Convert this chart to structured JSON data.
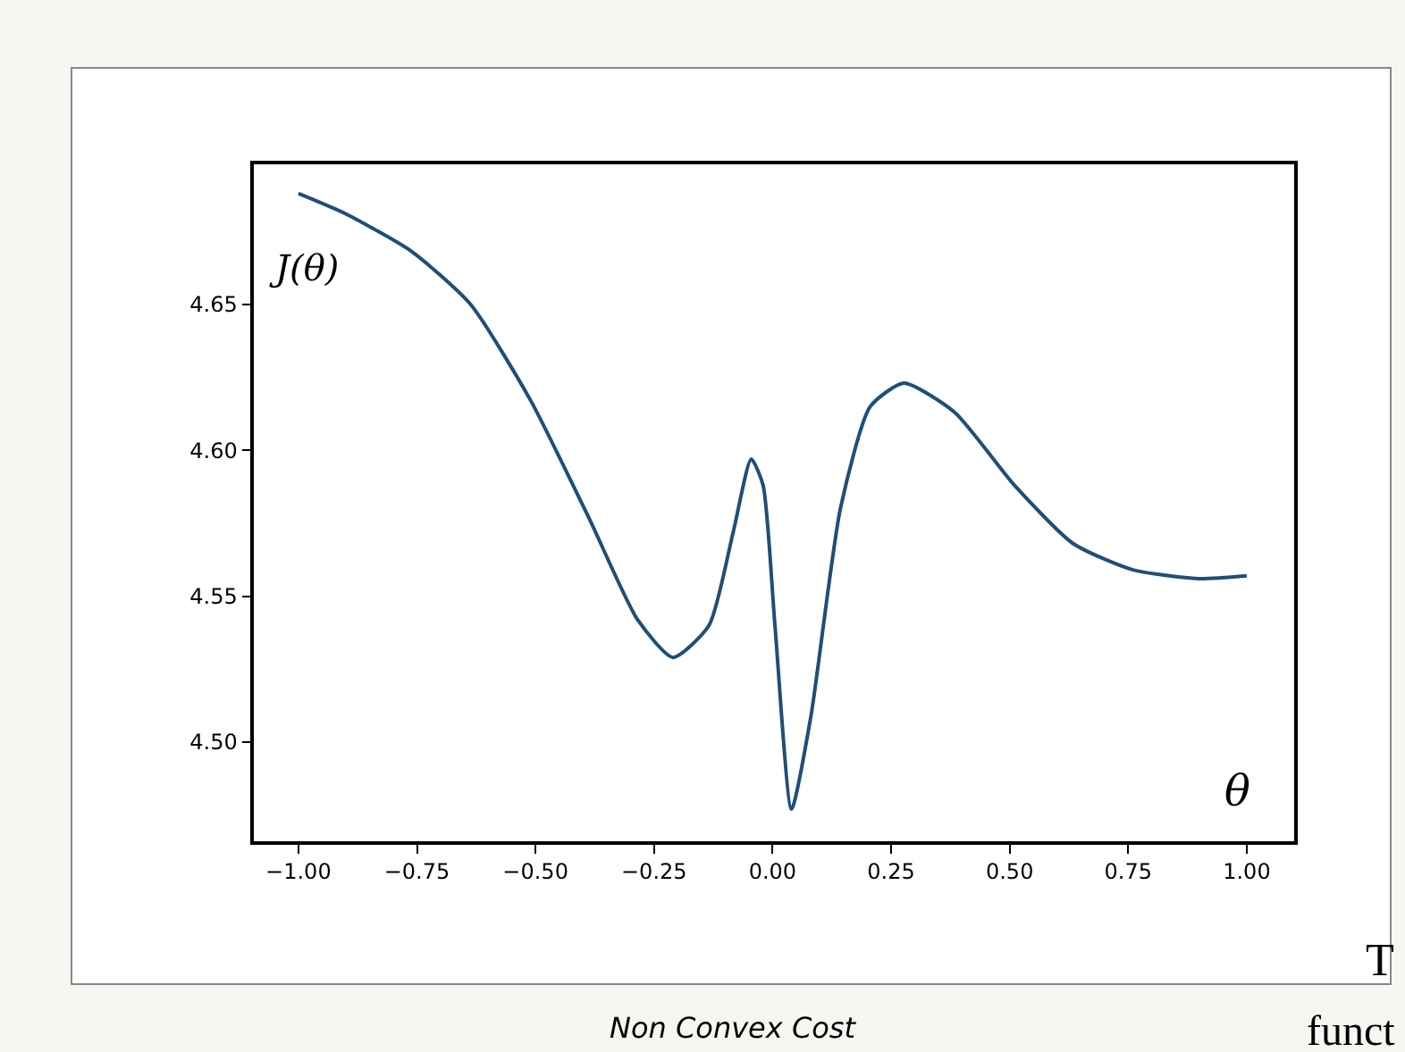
{
  "chart_data": {
    "type": "line",
    "x": [
      -1.0,
      -0.9,
      -0.76,
      -0.637,
      -0.51,
      -0.385,
      -0.285,
      -0.21,
      -0.134,
      -0.083,
      -0.045,
      -0.02,
      0.005,
      0.04,
      0.081,
      0.143,
      0.206,
      0.277,
      0.384,
      0.51,
      0.634,
      0.76,
      0.898,
      1.0
    ],
    "series": [
      {
        "color": "#1f4e79",
        "values": [
          4.688,
          4.681,
          4.668,
          4.65,
          4.617,
          4.576,
          4.542,
          4.529,
          4.54,
          4.572,
          4.597,
          4.588,
          4.54,
          4.477,
          4.509,
          4.58,
          4.615,
          4.623,
          4.613,
          4.588,
          4.568,
          4.559,
          4.556,
          4.557
        ]
      }
    ],
    "xlim": [
      -1.094,
      1.1
    ],
    "ylim": [
      4.466,
      4.698
    ],
    "xticks": [
      {
        "value": -1.0,
        "label": "−1.00"
      },
      {
        "value": -0.75,
        "label": "−0.75"
      },
      {
        "value": -0.5,
        "label": "−0.50"
      },
      {
        "value": -0.25,
        "label": "−0.25"
      },
      {
        "value": 0,
        "label": "0.00"
      },
      {
        "value": 0.25,
        "label": "0.25"
      },
      {
        "value": 0.5,
        "label": "0.50"
      },
      {
        "value": 0.75,
        "label": "0.75"
      },
      {
        "value": 1.0,
        "label": "1.00"
      }
    ],
    "yticks": [
      {
        "value": 4.5,
        "label": "4.50"
      },
      {
        "value": 4.55,
        "label": "4.55"
      },
      {
        "value": 4.6,
        "label": "4.60"
      },
      {
        "value": 4.65,
        "label": "4.65"
      }
    ],
    "ylabel": "J(θ)",
    "xlabel": "θ",
    "annotations": [
      "Non Convex Cost",
      "T",
      "funct"
    ],
    "legend": false,
    "marker": "none",
    "line_style": "solid"
  }
}
